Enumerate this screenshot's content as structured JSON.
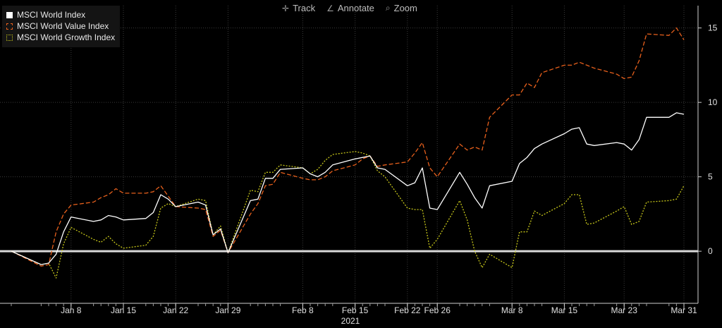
{
  "toolbar": {
    "track": "Track",
    "annotate": "Annotate",
    "zoom": "Zoom"
  },
  "colors": {
    "background": "#000000",
    "world": "#ffffff",
    "value": "#e8601c",
    "growth": "#c6c61a",
    "zero_line": "#d9d9d9",
    "grid": "#3a3a3a"
  },
  "chart_data": {
    "type": "line",
    "xlim": [
      "2020-12-31",
      "2021-03-31"
    ],
    "ylim": [
      -3.5,
      16.5
    ],
    "yticks": [
      0,
      5,
      10,
      15
    ],
    "ytick_labels": [
      "0",
      "5",
      "10",
      "15"
    ],
    "xticks": [
      "2021-01-08",
      "2021-01-15",
      "2021-01-22",
      "2021-01-29",
      "2021-02-08",
      "2021-02-15",
      "2021-02-22",
      "2021-02-26",
      "2021-03-08",
      "2021-03-15",
      "2021-03-23",
      "2021-03-31"
    ],
    "xtick_labels": [
      "Jan 8",
      "Jan 15",
      "Jan 22",
      "Jan 29",
      "Feb 8",
      "Feb 15",
      "Feb 22",
      "Feb 26",
      "Mar 8",
      "Mar 15",
      "Mar 23",
      "Mar 31"
    ],
    "year_label": "2021",
    "legend_position": "top-left",
    "grid": true,
    "zero_line": true,
    "x": [
      "2020-12-31",
      "2021-01-04",
      "2021-01-05",
      "2021-01-06",
      "2021-01-07",
      "2021-01-08",
      "2021-01-11",
      "2021-01-12",
      "2021-01-13",
      "2021-01-14",
      "2021-01-15",
      "2021-01-18",
      "2021-01-19",
      "2021-01-20",
      "2021-01-21",
      "2021-01-22",
      "2021-01-25",
      "2021-01-26",
      "2021-01-27",
      "2021-01-28",
      "2021-01-29",
      "2021-02-01",
      "2021-02-02",
      "2021-02-03",
      "2021-02-04",
      "2021-02-05",
      "2021-02-08",
      "2021-02-09",
      "2021-02-10",
      "2021-02-11",
      "2021-02-12",
      "2021-02-15",
      "2021-02-16",
      "2021-02-17",
      "2021-02-18",
      "2021-02-19",
      "2021-02-22",
      "2021-02-23",
      "2021-02-24",
      "2021-02-25",
      "2021-02-26",
      "2021-03-01",
      "2021-03-02",
      "2021-03-03",
      "2021-03-04",
      "2021-03-05",
      "2021-03-08",
      "2021-03-09",
      "2021-03-10",
      "2021-03-11",
      "2021-03-12",
      "2021-03-15",
      "2021-03-16",
      "2021-03-17",
      "2021-03-18",
      "2021-03-19",
      "2021-03-22",
      "2021-03-23",
      "2021-03-24",
      "2021-03-25",
      "2021-03-26",
      "2021-03-29",
      "2021-03-30",
      "2021-03-31"
    ],
    "series": [
      {
        "name": "MSCI World Index",
        "style": "solid",
        "color": "#ffffff",
        "values": [
          0,
          -0.9,
          -0.8,
          -0.2,
          1.3,
          2.3,
          2.0,
          2.1,
          2.4,
          2.3,
          2.1,
          2.2,
          2.6,
          3.8,
          3.5,
          3.0,
          3.3,
          3.1,
          1.1,
          1.5,
          -0.1,
          3.4,
          3.5,
          4.9,
          4.9,
          5.5,
          5.6,
          5.2,
          5.0,
          5.3,
          5.8,
          6.2,
          6.3,
          6.4,
          5.6,
          5.5,
          4.4,
          4.6,
          5.6,
          2.9,
          2.8,
          5.3,
          4.5,
          3.6,
          2.9,
          4.4,
          4.7,
          5.9,
          6.3,
          6.9,
          7.2,
          7.9,
          8.2,
          8.3,
          7.2,
          7.1,
          7.3,
          7.2,
          6.8,
          7.5,
          9.0,
          9.0,
          9.3,
          9.2
        ]
      },
      {
        "name": "MSCI World Value Index",
        "style": "dashed",
        "color": "#e8601c",
        "values": [
          0,
          -1.0,
          -0.9,
          1.3,
          2.5,
          3.1,
          3.3,
          3.6,
          3.8,
          4.2,
          3.9,
          3.9,
          4.0,
          4.4,
          3.7,
          3.0,
          2.9,
          2.8,
          1.0,
          1.4,
          -0.1,
          2.5,
          3.2,
          4.4,
          4.5,
          5.3,
          4.9,
          4.8,
          4.8,
          5.0,
          5.4,
          5.8,
          6.2,
          6.4,
          5.7,
          5.8,
          6.0,
          6.6,
          7.3,
          5.6,
          5.0,
          7.2,
          6.8,
          7.0,
          6.8,
          9.0,
          10.5,
          10.5,
          11.3,
          11.0,
          12.0,
          12.5,
          12.5,
          12.7,
          12.5,
          12.3,
          11.9,
          11.6,
          11.7,
          12.8,
          14.6,
          14.5,
          15.0,
          14.2
        ]
      },
      {
        "name": "MSCI World Growth Index",
        "style": "dotted",
        "color": "#c6c61a",
        "values": [
          0,
          -0.9,
          -0.8,
          -1.8,
          0.5,
          1.6,
          0.8,
          0.6,
          1.0,
          0.5,
          0.2,
          0.4,
          1.0,
          2.9,
          3.2,
          3.0,
          3.5,
          3.4,
          1.1,
          1.7,
          -0.1,
          4.1,
          4.0,
          5.3,
          5.3,
          5.8,
          5.6,
          5.2,
          5.5,
          6.1,
          6.5,
          6.7,
          6.6,
          6.4,
          5.4,
          5.0,
          2.9,
          2.8,
          2.8,
          0.2,
          0.8,
          3.4,
          2.1,
          0.0,
          -1.1,
          -0.2,
          -1.1,
          1.3,
          1.3,
          2.7,
          2.4,
          3.2,
          3.8,
          3.8,
          1.8,
          1.9,
          2.7,
          3.0,
          1.8,
          2.0,
          3.3,
          3.4,
          3.5,
          4.4
        ]
      }
    ]
  }
}
